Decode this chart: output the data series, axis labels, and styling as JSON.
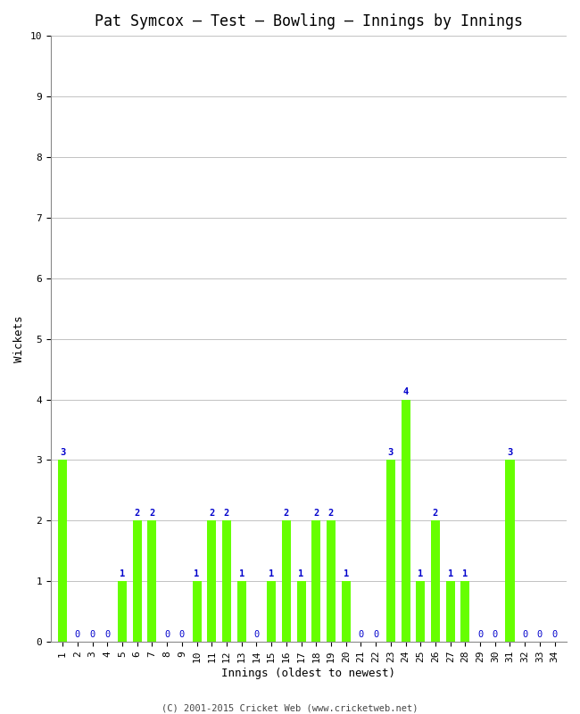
{
  "title": "Pat Symcox – Test – Bowling – Innings by Innings",
  "xlabel": "Innings (oldest to newest)",
  "ylabel": "Wickets",
  "footer": "(C) 2001-2015 Cricket Web (www.cricketweb.net)",
  "innings": [
    1,
    2,
    3,
    4,
    5,
    6,
    7,
    8,
    9,
    10,
    11,
    12,
    13,
    14,
    15,
    16,
    17,
    18,
    19,
    20,
    21,
    22,
    23,
    24,
    25,
    26,
    27,
    28,
    29,
    30,
    31,
    32,
    33,
    34
  ],
  "wickets": [
    3,
    0,
    0,
    0,
    1,
    2,
    2,
    0,
    0,
    1,
    2,
    2,
    1,
    0,
    1,
    2,
    1,
    2,
    2,
    1,
    0,
    0,
    3,
    4,
    1,
    2,
    1,
    1,
    0,
    0,
    3,
    0,
    0,
    0
  ],
  "bar_color": "#66ff00",
  "label_color": "#0000cc",
  "background_color": "#ffffff",
  "ylim": [
    0,
    10
  ],
  "yticks": [
    0,
    1,
    2,
    3,
    4,
    5,
    6,
    7,
    8,
    9,
    10
  ],
  "grid_color": "#aaaaaa",
  "title_fontsize": 12,
  "axis_label_fontsize": 9,
  "tick_fontsize": 8,
  "bar_label_fontsize": 7.5
}
